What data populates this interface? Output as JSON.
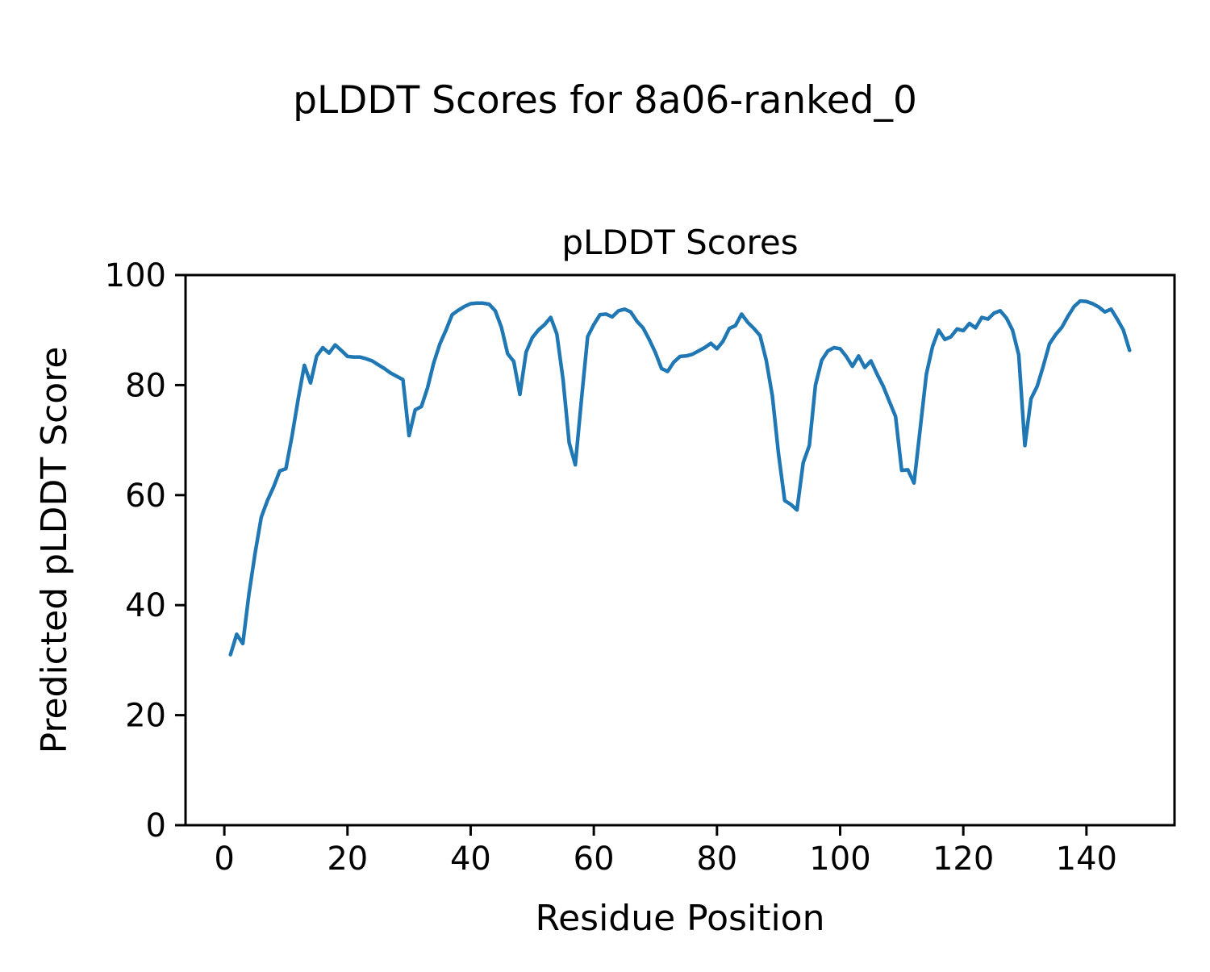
{
  "figure": {
    "suptitle": "pLDDT Scores for 8a06-ranked_0",
    "background_color": "#ffffff",
    "text_color": "#000000"
  },
  "chart_data": {
    "type": "line",
    "title": "pLDDT Scores",
    "xlabel": "Residue Position",
    "ylabel": "Predicted pLDDT Score",
    "series_name": "pLDDT",
    "line_color": "#1f77b4",
    "line_width": 4.5,
    "grid": false,
    "legend_position": "none",
    "xlim": [
      -6.3,
      154.3
    ],
    "ylim": [
      0,
      100
    ],
    "x_ticks": [
      0,
      20,
      40,
      60,
      80,
      100,
      120,
      140
    ],
    "y_ticks": [
      0,
      20,
      40,
      60,
      80,
      100
    ],
    "x_start": 1,
    "x_step": 1,
    "values": [
      31,
      34.7,
      33,
      42,
      49.5,
      56,
      59,
      61.5,
      64.4,
      64.8,
      70.8,
      77.5,
      83.6,
      80.4,
      85.3,
      86.8,
      85.8,
      87.3,
      86.3,
      85.2,
      85.1,
      85.1,
      84.8,
      84.4,
      83.7,
      83,
      82.2,
      81.6,
      81,
      70.8,
      75.5,
      76.1,
      79.5,
      84,
      87.5,
      90,
      92.8,
      93.6,
      94.3,
      94.8,
      94.9,
      94.9,
      94.7,
      93.5,
      90.5,
      85.7,
      84.3,
      78.3,
      86,
      88.6,
      90,
      91,
      92.3,
      89.3,
      81,
      69.5,
      65.5,
      77.5,
      88.8,
      91,
      92.8,
      92.9,
      92.4,
      93.5,
      93.8,
      93.3,
      91.6,
      90.4,
      88.3,
      85.9,
      83,
      82.5,
      84.2,
      85.2,
      85.3,
      85.6,
      86.2,
      86.8,
      87.6,
      86.6,
      88,
      90.3,
      90.8,
      92.9,
      91.4,
      90.3,
      89,
      84.5,
      78,
      67.5,
      59,
      58.3,
      57.3,
      65.9,
      69,
      80,
      84.5,
      86.2,
      86.8,
      86.6,
      85.2,
      83.4,
      85.3,
      83.2,
      84.4,
      82,
      79.8,
      77,
      74.3,
      64.5,
      64.6,
      62.2,
      72,
      82,
      87,
      90,
      88.3,
      88.8,
      90.2,
      89.9,
      91.2,
      90.4,
      92.3,
      92,
      93.1,
      93.5,
      92.2,
      90,
      85.5,
      69,
      77.5,
      79.8,
      83.5,
      87.5,
      89.2,
      90.5,
      92.5,
      94.3,
      95.3,
      95.2,
      94.8,
      94.2,
      93.3,
      93.8,
      92,
      90,
      86.3
    ]
  }
}
